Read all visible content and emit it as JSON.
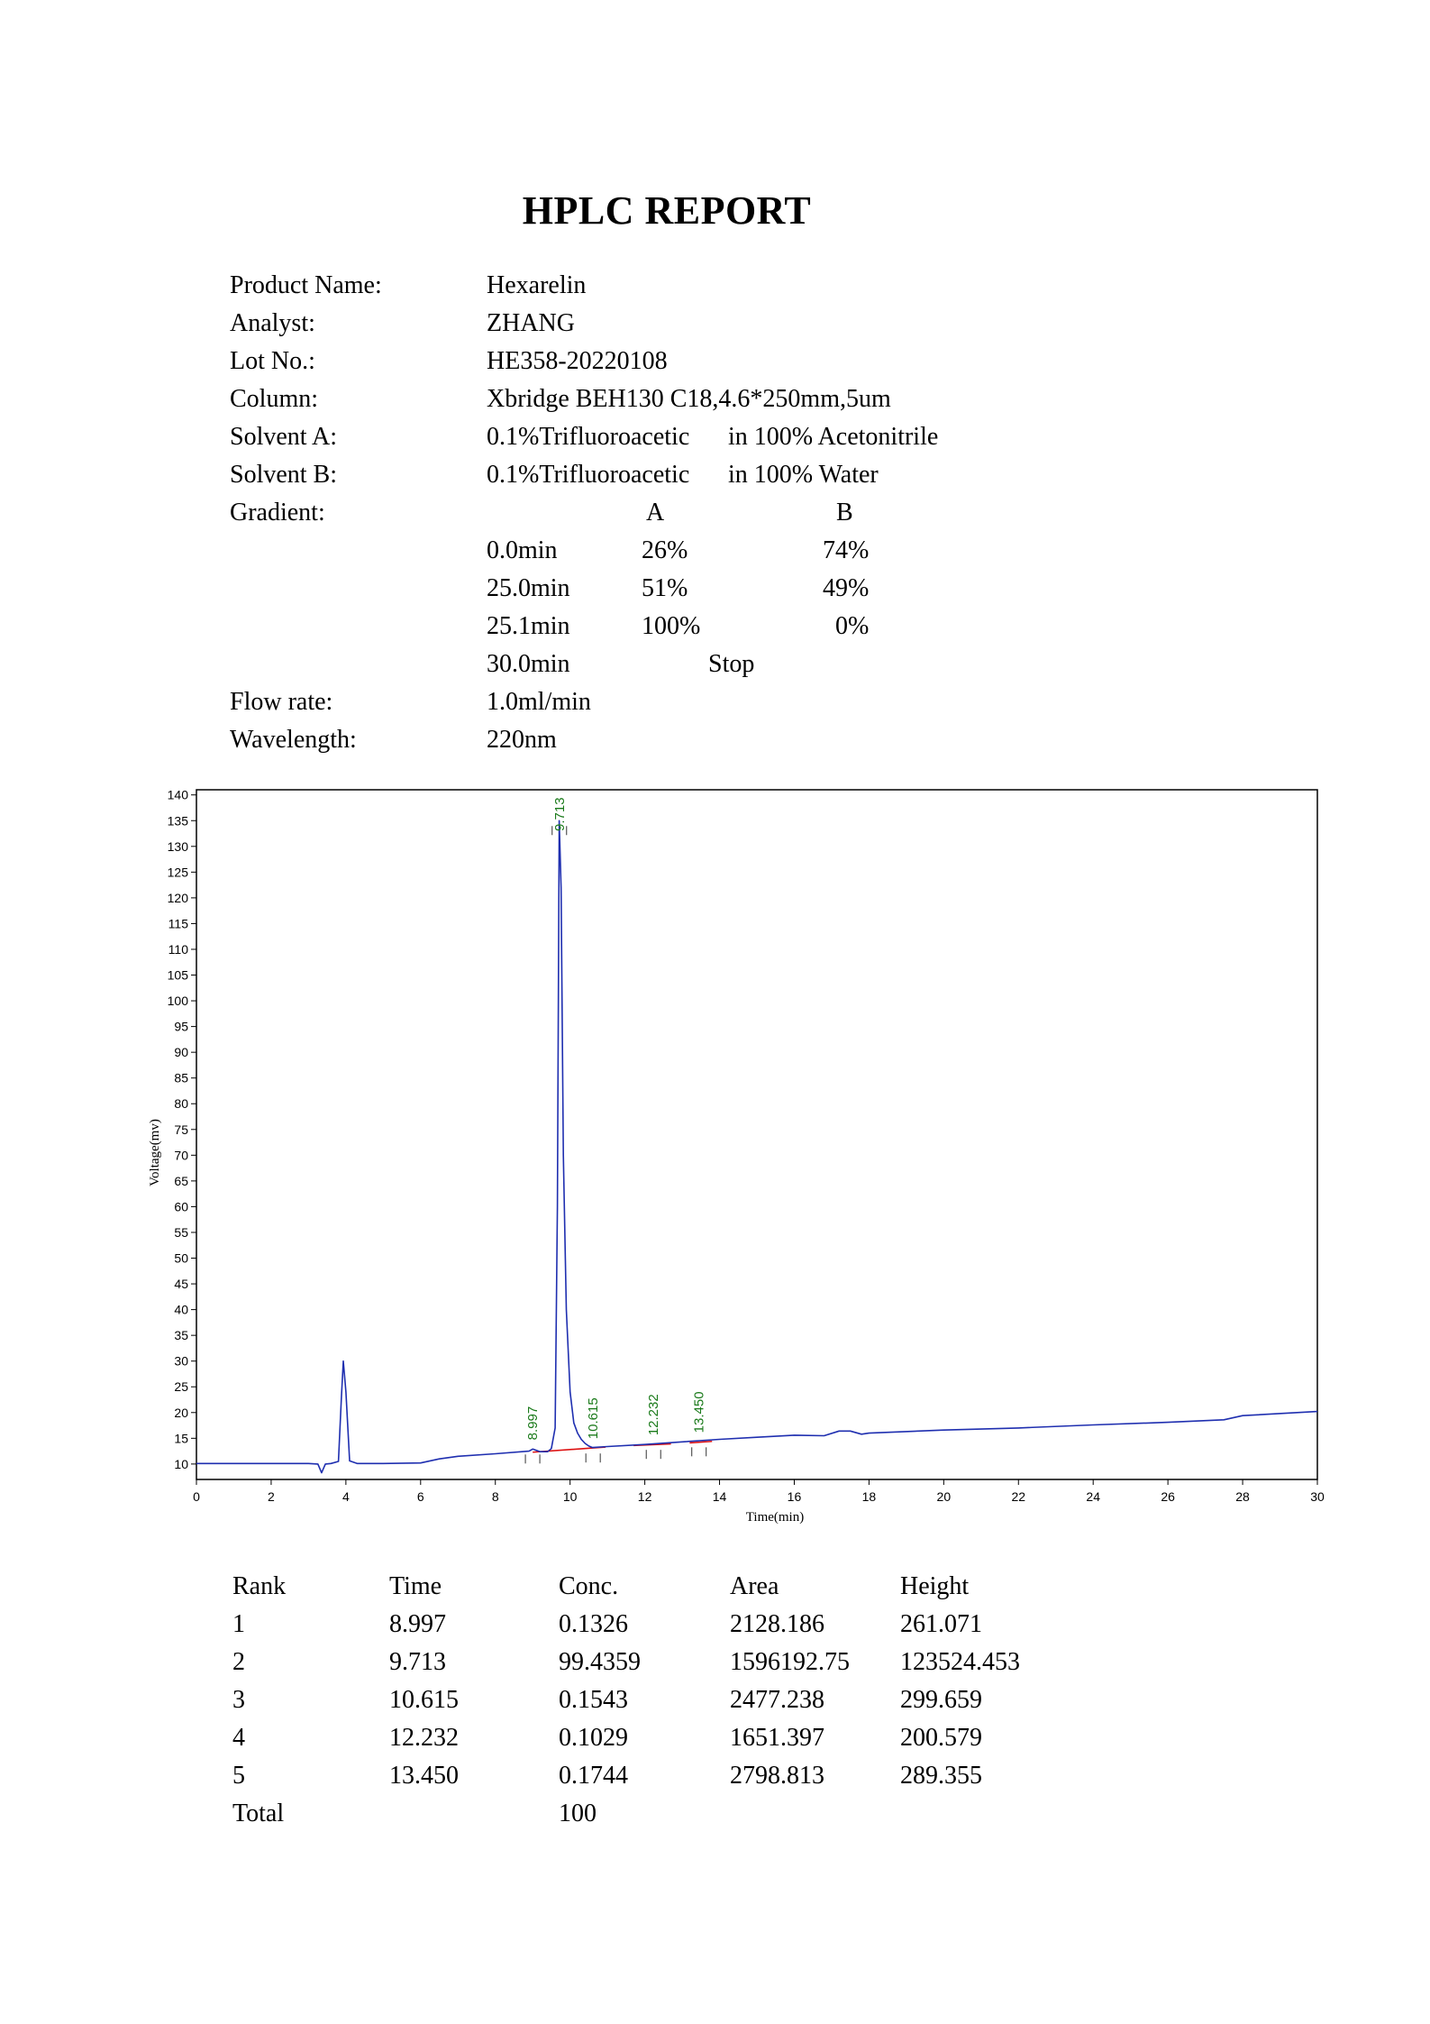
{
  "title": "HPLC REPORT",
  "info": [
    {
      "label": "Product Name:",
      "value": "Hexarelin"
    },
    {
      "label": "Analyst:",
      "value": "ZHANG"
    },
    {
      "label": "Lot No.:",
      "value": "HE358-20220108"
    },
    {
      "label": "Column:",
      "value": "Xbridge BEH130 C18,4.6*250mm,5um"
    },
    {
      "label": "Solvent A:",
      "value": "0.1%Trifluoroacetic",
      "extra": "in 100% Acetonitrile"
    },
    {
      "label": "Solvent B:",
      "value": "0.1%Trifluoroacetic",
      "extra": "in 100% Water"
    },
    {
      "label": "Gradient:",
      "value": ""
    }
  ],
  "gradient": {
    "header": {
      "a": "A",
      "b": "B"
    },
    "rows": [
      {
        "time": "0.0min",
        "a": "26%",
        "b": "74%"
      },
      {
        "time": "25.0min",
        "a": "51%",
        "b": "49%"
      },
      {
        "time": "25.1min",
        "a": "100%",
        "b": "0%"
      },
      {
        "time": "30.0min",
        "stop": "Stop"
      }
    ]
  },
  "info2": [
    {
      "label": "Flow rate:",
      "value": "1.0ml/min"
    },
    {
      "label": "Wavelength:",
      "value": "220nm"
    }
  ],
  "chart_data": {
    "type": "line",
    "title": "",
    "xlabel": "Time(min)",
    "ylabel": "Voltage(mv)",
    "xlim": [
      0,
      30
    ],
    "ylim": [
      7,
      141
    ],
    "xticks": [
      0,
      2,
      4,
      6,
      8,
      10,
      12,
      14,
      16,
      18,
      20,
      22,
      24,
      26,
      28,
      30
    ],
    "yticks": [
      10,
      15,
      20,
      25,
      30,
      35,
      40,
      45,
      50,
      55,
      60,
      65,
      70,
      75,
      80,
      85,
      90,
      95,
      100,
      105,
      110,
      115,
      120,
      125,
      130,
      135,
      140
    ],
    "series": [
      {
        "color": "#1f2fb0",
        "x": [
          0,
          3.0,
          3.25,
          3.35,
          3.45,
          3.6,
          3.8,
          3.88,
          3.93,
          4.0,
          4.1,
          4.3,
          5.0,
          6.0,
          6.5,
          7.0,
          8.0,
          8.9,
          9.0,
          9.2,
          9.4,
          9.5,
          9.6,
          9.66,
          9.71,
          9.76,
          9.82,
          9.9,
          10.0,
          10.1,
          10.2,
          10.3,
          10.4,
          10.5,
          10.6,
          11.0,
          12.0,
          13.0,
          14.0,
          15.0,
          16.0,
          16.8,
          17.2,
          17.5,
          17.8,
          18.0,
          20.0,
          22.0,
          24.0,
          26.0,
          27.5,
          28.0,
          30.0
        ],
        "y": [
          10.1,
          10.1,
          10.0,
          8.3,
          10.0,
          10.1,
          10.5,
          23.0,
          30.0,
          24.0,
          10.6,
          10.1,
          10.1,
          10.2,
          11.0,
          11.5,
          12.0,
          12.5,
          12.9,
          12.4,
          12.4,
          13.0,
          17.0,
          60.0,
          135.0,
          122.0,
          70.0,
          40.0,
          24.0,
          18.0,
          16.0,
          14.8,
          14.0,
          13.5,
          13.2,
          13.4,
          13.8,
          14.3,
          14.8,
          15.2,
          15.6,
          15.5,
          16.4,
          16.4,
          15.8,
          16.0,
          16.6,
          17.0,
          17.6,
          18.1,
          18.6,
          19.4,
          20.2
        ]
      }
    ],
    "peaks": [
      {
        "rt": 8.997,
        "label": "8.997",
        "height": 12.9
      },
      {
        "rt": 9.713,
        "label": "9.713",
        "height": 135.0
      },
      {
        "rt": 10.615,
        "label": "10.615",
        "height": 13.1
      },
      {
        "rt": 12.232,
        "label": "12.232",
        "height": 13.8
      },
      {
        "rt": 13.45,
        "label": "13.450",
        "height": 14.3
      }
    ],
    "baselines": [
      {
        "x1": 9.0,
        "y1": 12.3,
        "x2": 10.95,
        "y2": 13.3
      },
      {
        "x1": 11.7,
        "y1": 13.6,
        "x2": 12.7,
        "y2": 13.9
      },
      {
        "x1": 13.2,
        "y1": 14.1,
        "x2": 13.8,
        "y2": 14.4
      }
    ],
    "grid": false,
    "legend": "none"
  },
  "results": {
    "headers": [
      "Rank",
      "Time",
      "Conc.",
      "Area",
      "Height"
    ],
    "rows": [
      [
        "1",
        "8.997",
        "0.1326",
        "2128.186",
        "261.071"
      ],
      [
        "2",
        "9.713",
        "99.4359",
        "1596192.75",
        "123524.453"
      ],
      [
        "3",
        "10.615",
        "0.1543",
        "2477.238",
        "299.659"
      ],
      [
        "4",
        "12.232",
        "0.1029",
        "1651.397",
        "200.579"
      ],
      [
        "5",
        "13.450",
        "0.1744",
        "2798.813",
        "289.355"
      ],
      [
        "Total",
        "",
        "100",
        "",
        ""
      ]
    ]
  }
}
